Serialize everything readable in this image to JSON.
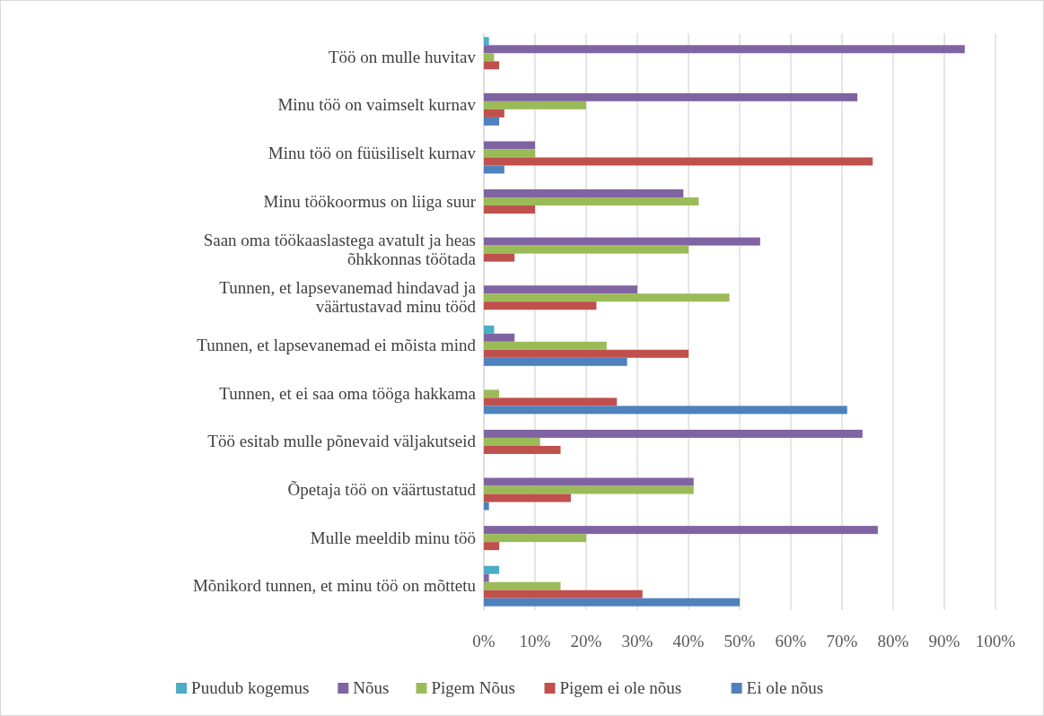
{
  "chart_data": {
    "type": "bar",
    "orientation": "horizontal",
    "categories": [
      "Töö on mulle huvitav",
      "Minu töö on vaimselt kurnav",
      "Minu töö on füüsiliselt kurnav",
      "Minu töökoormus on liiga suur ",
      "Saan oma töökaaslastega avatult ja heas õhkkonnas töötada",
      "Tunnen, et lapsevanemad hindavad ja väärtustavad minu tööd",
      "Tunnen, et lapsevanemad ei mõista mind",
      "Tunnen, et ei saa oma tööga hakkama",
      "Töö esitab mulle põnevaid väljakutseid",
      "Õpetaja töö on väärtustatud",
      "Mulle meeldib minu töö",
      "Mõnikord tunnen, et minu töö on mõttetu"
    ],
    "series": [
      {
        "name": "Puudub kogemus",
        "color": "#4bacc6",
        "values": [
          1,
          0,
          0,
          0,
          0,
          0,
          2,
          0,
          0,
          0,
          0,
          3
        ]
      },
      {
        "name": "Nõus",
        "color": "#8064a2",
        "values": [
          94,
          73,
          10,
          39,
          54,
          30,
          6,
          0,
          74,
          41,
          77,
          1
        ]
      },
      {
        "name": "Pigem Nõus",
        "color": "#9bbb59",
        "values": [
          2,
          20,
          10,
          42,
          40,
          48,
          24,
          3,
          11,
          41,
          20,
          15
        ]
      },
      {
        "name": "Pigem ei ole nõus",
        "color": "#c0504d",
        "values": [
          3,
          4,
          76,
          10,
          6,
          22,
          40,
          26,
          15,
          17,
          3,
          31
        ]
      },
      {
        "name": "Ei ole nõus",
        "color": "#4f81bd",
        "values": [
          0,
          3,
          4,
          0,
          0,
          0,
          28,
          71,
          0,
          1,
          0,
          50
        ]
      }
    ],
    "xlim": [
      0,
      100
    ],
    "xticks": [
      {
        "value": 0,
        "label": "0%"
      },
      {
        "value": 10,
        "label": "10%"
      },
      {
        "value": 20,
        "label": "20%"
      },
      {
        "value": 30,
        "label": "30%"
      },
      {
        "value": 40,
        "label": "40%"
      },
      {
        "value": 50,
        "label": "50%"
      },
      {
        "value": 60,
        "label": "60%"
      },
      {
        "value": 70,
        "label": "70%"
      },
      {
        "value": 80,
        "label": "80%"
      },
      {
        "value": 90,
        "label": "90%"
      },
      {
        "value": 100,
        "label": "100%"
      }
    ],
    "grid": "x",
    "legend": "bottom"
  }
}
